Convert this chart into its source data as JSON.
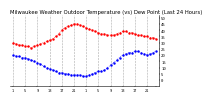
{
  "title": "Milwaukee Weather Outdoor Temperature (vs) Dew Point (Last 24 Hours)",
  "title_fontsize": 3.8,
  "background_color": "#ffffff",
  "temp_color": "#ff0000",
  "dew_color": "#0000ff",
  "ylim": [
    -5,
    52
  ],
  "y_ticks": [
    0,
    5,
    10,
    15,
    20,
    25,
    30,
    35,
    40,
    45,
    50
  ],
  "y_tick_labels": [
    "0",
    "5",
    "10",
    "15",
    "20",
    "25",
    "30",
    "35",
    "40",
    "45",
    "50"
  ],
  "hours": [
    0,
    1,
    2,
    3,
    4,
    5,
    6,
    7,
    8,
    9,
    10,
    11,
    12,
    13,
    14,
    15,
    16,
    17,
    18,
    19,
    20,
    21,
    22,
    23,
    24,
    25,
    26,
    27,
    28,
    29,
    30,
    31,
    32,
    33,
    34,
    35,
    36,
    37,
    38,
    39,
    40,
    41,
    42,
    43,
    44,
    45,
    46,
    47
  ],
  "temp": [
    30,
    29,
    28,
    28,
    27,
    27,
    26,
    27,
    28,
    29,
    30,
    31,
    32,
    33,
    35,
    37,
    40,
    42,
    43,
    44,
    45,
    45,
    44,
    43,
    42,
    41,
    40,
    39,
    38,
    37,
    37,
    36,
    36,
    36,
    37,
    38,
    39,
    39,
    38,
    38,
    37,
    36,
    36,
    35,
    35,
    34,
    34,
    33
  ],
  "dew": [
    20,
    19,
    19,
    18,
    18,
    17,
    16,
    15,
    14,
    13,
    11,
    10,
    9,
    8,
    7,
    6,
    6,
    5,
    5,
    4,
    4,
    4,
    4,
    3,
    3,
    4,
    5,
    6,
    7,
    7,
    8,
    10,
    12,
    14,
    16,
    18,
    20,
    21,
    22,
    22,
    23,
    23,
    22,
    21,
    20,
    21,
    22,
    23
  ],
  "x_tick_positions": [
    0,
    4,
    8,
    12,
    16,
    20,
    24,
    28,
    32,
    36,
    40,
    44,
    47
  ],
  "x_tick_labels": [
    "1",
    "5",
    "9",
    "13",
    "17",
    "21",
    "1",
    "5",
    "9",
    "13",
    "17",
    "21",
    ""
  ],
  "vline_positions": [
    0,
    4,
    8,
    12,
    16,
    20,
    24,
    28,
    32,
    36,
    40,
    44
  ]
}
